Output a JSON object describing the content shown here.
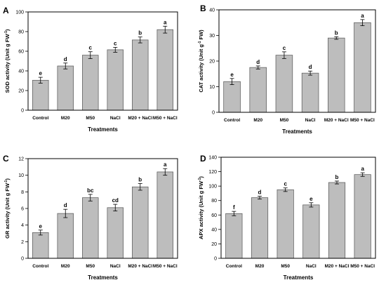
{
  "figure": {
    "bar_fill": "#bdbdbd",
    "bar_stroke": "#555555",
    "axis_color": "#000000"
  },
  "chart_data": [
    {
      "panel": "A",
      "type": "bar",
      "categories": [
        "Control",
        "M20",
        "M50",
        "NaCl",
        "M20 + NaCl",
        "M50 + NaCl"
      ],
      "values": [
        30.5,
        45,
        56,
        61.5,
        71.5,
        82
      ],
      "errors": [
        3,
        3,
        3.5,
        2.5,
        3,
        3.5
      ],
      "letters": [
        "e",
        "d",
        "c",
        "c",
        "b",
        "a"
      ],
      "xlabel": "Treatments",
      "ylabel_main": "SOD activity (Unit g FW",
      "ylabel_sup": "-1",
      "ylabel_end": ")",
      "ylim": [
        0,
        100
      ],
      "yticks": [
        0,
        20,
        40,
        60,
        80,
        100
      ]
    },
    {
      "panel": "B",
      "type": "bar",
      "categories": [
        "Control",
        "M20",
        "M50",
        "NaCl",
        "M20 + NaCl",
        "M50 + NaCl"
      ],
      "values": [
        12,
        17.5,
        22.3,
        15.3,
        29,
        35
      ],
      "errors": [
        1.2,
        0.6,
        1.3,
        0.8,
        0.5,
        1.2
      ],
      "letters": [
        "e",
        "d",
        "c",
        "d",
        "b",
        "a"
      ],
      "xlabel": "Treatments",
      "ylabel_main": "CAT activity (Unit g",
      "ylabel_sup": "-1",
      "ylabel_end": " FW)",
      "ylim": [
        0,
        40
      ],
      "yticks": [
        0,
        10,
        20,
        30,
        40
      ]
    },
    {
      "panel": "C",
      "type": "bar",
      "categories": [
        "Control",
        "M20",
        "M50",
        "NaCl",
        "M20 + NaCl",
        "M50 + NaCl"
      ],
      "values": [
        3.1,
        5.4,
        7.3,
        6.1,
        8.6,
        10.4
      ],
      "errors": [
        0.3,
        0.5,
        0.4,
        0.4,
        0.4,
        0.4
      ],
      "letters": [
        "e",
        "d",
        "bc",
        "cd",
        "b",
        "a"
      ],
      "xlabel": "Treatments",
      "ylabel_main": "GR activity (Unit g FW",
      "ylabel_sup": "-1",
      "ylabel_end": ")",
      "ylim": [
        0,
        12
      ],
      "yticks": [
        0,
        2,
        4,
        6,
        8,
        10,
        12
      ]
    },
    {
      "panel": "D",
      "type": "bar",
      "categories": [
        "Control",
        "M20",
        "M50",
        "NaCl",
        "M20 + NaCl",
        "M50 + NaCl"
      ],
      "values": [
        62,
        84,
        95,
        74,
        105,
        116
      ],
      "errors": [
        3,
        2,
        2.5,
        3,
        2,
        2.5
      ],
      "letters": [
        "f",
        "d",
        "c",
        "e",
        "b",
        "a"
      ],
      "xlabel": "Treatments",
      "ylabel_main": "APX activity (Unit g FW",
      "ylabel_sup": "-1",
      "ylabel_end": ")",
      "ylim": [
        0,
        140
      ],
      "yticks": [
        0,
        20,
        40,
        60,
        80,
        100,
        120,
        140
      ]
    }
  ]
}
